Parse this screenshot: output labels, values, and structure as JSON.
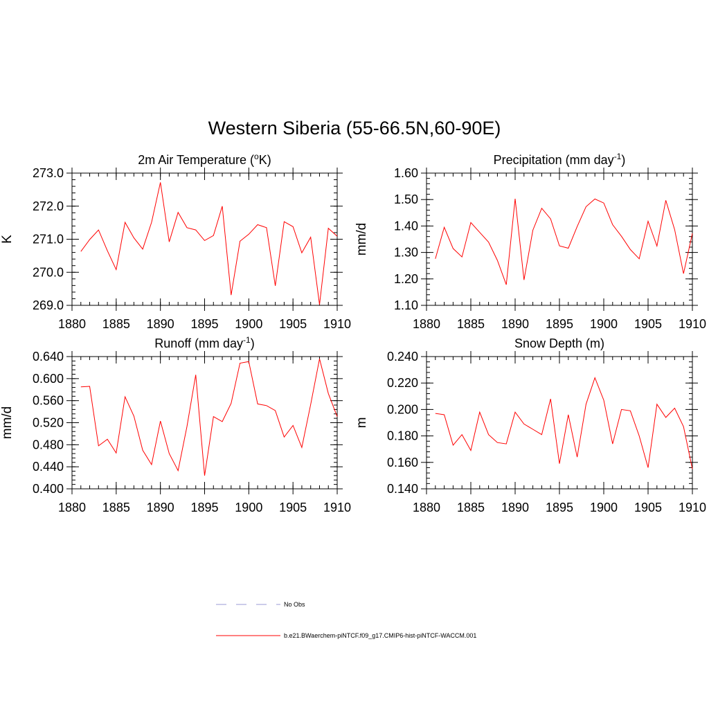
{
  "figure": {
    "title": "Western Siberia (55-66.5N,60-90E)"
  },
  "legend": {
    "items": [
      {
        "label": "No Obs",
        "color": "#9a9ad6",
        "style": "dashed"
      },
      {
        "label": "b.e21.BWaerchem-piNTCF.f09_g17.CMIP6-hist-piNTCF-WACCM.001",
        "color": "#ff0000",
        "style": "solid"
      }
    ]
  },
  "chart_data": [
    {
      "type": "line",
      "title": "2m Air Temperature (",
      "title_sup": "o",
      "title_tail": "K)",
      "ylabel": "K",
      "xlabel": "",
      "xlim": [
        1880,
        1910
      ],
      "ylim": [
        269.0,
        273.0
      ],
      "xticks": [
        1880,
        1885,
        1890,
        1895,
        1900,
        1905,
        1910
      ],
      "yticks": [
        269.0,
        270.0,
        271.0,
        272.0,
        273.0
      ],
      "ytick_labels": [
        "269.0",
        "270.0",
        "271.0",
        "272.0",
        "273.0"
      ],
      "ymajor": 1.0,
      "yminor": 0.2,
      "color": "#ff0000",
      "x": [
        1881,
        1882,
        1883,
        1884,
        1885,
        1886,
        1887,
        1888,
        1889,
        1890,
        1891,
        1892,
        1893,
        1894,
        1895,
        1896,
        1897,
        1898,
        1899,
        1900,
        1901,
        1902,
        1903,
        1904,
        1905,
        1906,
        1907,
        1908,
        1909,
        1910
      ],
      "y": [
        270.63,
        270.99,
        271.28,
        270.65,
        270.08,
        271.51,
        271.04,
        270.7,
        271.51,
        272.72,
        270.92,
        271.81,
        271.35,
        271.28,
        270.96,
        271.11,
        272.0,
        269.31,
        270.94,
        271.15,
        271.44,
        271.35,
        269.59,
        271.53,
        271.38,
        270.59,
        271.06,
        269.02,
        271.33,
        271.09
      ]
    },
    {
      "type": "line",
      "title": "Precipitation (mm day",
      "title_sup": "-1",
      "title_tail": ")",
      "ylabel": "mm/d",
      "xlabel": "",
      "xlim": [
        1880,
        1910
      ],
      "ylim": [
        1.1,
        1.6
      ],
      "xticks": [
        1880,
        1885,
        1890,
        1895,
        1900,
        1905,
        1910
      ],
      "yticks": [
        1.1,
        1.2,
        1.3,
        1.4,
        1.5,
        1.6
      ],
      "ytick_labels": [
        "1.10",
        "1.20",
        "1.30",
        "1.40",
        "1.50",
        "1.60"
      ],
      "ymajor": 0.1,
      "yminor": 0.02,
      "color": "#ff0000",
      "x": [
        1881,
        1882,
        1883,
        1884,
        1885,
        1886,
        1887,
        1888,
        1889,
        1890,
        1891,
        1892,
        1893,
        1894,
        1895,
        1896,
        1897,
        1898,
        1899,
        1900,
        1901,
        1902,
        1903,
        1904,
        1905,
        1906,
        1907,
        1908,
        1909,
        1910
      ],
      "y": [
        1.276,
        1.395,
        1.315,
        1.283,
        1.413,
        1.376,
        1.339,
        1.27,
        1.178,
        1.503,
        1.196,
        1.384,
        1.467,
        1.427,
        1.325,
        1.316,
        1.398,
        1.473,
        1.502,
        1.487,
        1.405,
        1.361,
        1.311,
        1.276,
        1.418,
        1.324,
        1.497,
        1.386,
        1.22,
        1.372
      ]
    },
    {
      "type": "line",
      "title": "Runoff (mm day",
      "title_sup": "-1",
      "title_tail": ")",
      "ylabel": "mm/d",
      "xlabel": "",
      "xlim": [
        1880,
        1910
      ],
      "ylim": [
        0.4,
        0.64
      ],
      "xticks": [
        1880,
        1885,
        1890,
        1895,
        1900,
        1905,
        1910
      ],
      "yticks": [
        0.4,
        0.44,
        0.48,
        0.52,
        0.56,
        0.6,
        0.64
      ],
      "ytick_labels": [
        "0.400",
        "0.440",
        "0.480",
        "0.520",
        "0.560",
        "0.600",
        "0.640"
      ],
      "ymajor": 0.04,
      "yminor": 0.008,
      "color": "#ff0000",
      "x": [
        1881,
        1882,
        1883,
        1884,
        1885,
        1886,
        1887,
        1888,
        1889,
        1890,
        1891,
        1892,
        1893,
        1894,
        1895,
        1896,
        1897,
        1898,
        1899,
        1900,
        1901,
        1902,
        1903,
        1904,
        1905,
        1906,
        1907,
        1908,
        1909,
        1910
      ],
      "y": [
        0.585,
        0.586,
        0.478,
        0.49,
        0.465,
        0.567,
        0.532,
        0.47,
        0.444,
        0.523,
        0.464,
        0.433,
        0.513,
        0.607,
        0.424,
        0.531,
        0.522,
        0.555,
        0.628,
        0.631,
        0.554,
        0.551,
        0.542,
        0.494,
        0.515,
        0.475,
        0.553,
        0.636,
        0.573,
        0.531
      ]
    },
    {
      "type": "line",
      "title": "Snow Depth (m)",
      "title_sup": "",
      "title_tail": "",
      "ylabel": "m",
      "xlabel": "",
      "xlim": [
        1880,
        1910
      ],
      "ylim": [
        0.14,
        0.24
      ],
      "xticks": [
        1880,
        1885,
        1890,
        1895,
        1900,
        1905,
        1910
      ],
      "yticks": [
        0.14,
        0.16,
        0.18,
        0.2,
        0.22,
        0.24
      ],
      "ytick_labels": [
        "0.140",
        "0.160",
        "0.180",
        "0.200",
        "0.220",
        "0.240"
      ],
      "ymajor": 0.02,
      "yminor": 0.004,
      "color": "#ff0000",
      "x": [
        1881,
        1882,
        1883,
        1884,
        1885,
        1886,
        1887,
        1888,
        1889,
        1890,
        1891,
        1892,
        1893,
        1894,
        1895,
        1896,
        1897,
        1898,
        1899,
        1900,
        1901,
        1902,
        1903,
        1904,
        1905,
        1906,
        1907,
        1908,
        1909,
        1910
      ],
      "y": [
        0.197,
        0.196,
        0.173,
        0.181,
        0.169,
        0.198,
        0.181,
        0.175,
        0.174,
        0.198,
        0.189,
        0.185,
        0.181,
        0.208,
        0.159,
        0.196,
        0.164,
        0.204,
        0.224,
        0.207,
        0.174,
        0.2,
        0.199,
        0.18,
        0.156,
        0.204,
        0.194,
        0.201,
        0.187,
        0.155
      ]
    }
  ]
}
